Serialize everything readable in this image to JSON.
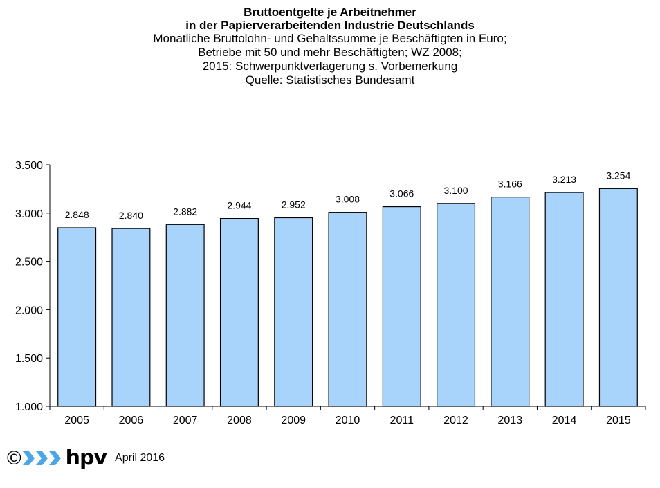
{
  "chart_data": {
    "type": "bar",
    "title": "Bruttoentgelte je Arbeitnehmer",
    "title_line2": "in der Papierverarbeitenden Industrie Deutschlands",
    "subtitle": [
      "Monatliche Bruttolohn- und Gehaltssumme je Beschäftigten in Euro;",
      "Betriebe mit 50 und mehr Beschäftigten; WZ 2008;",
      "2015: Schwerpunktverlagerung s. Vorbemerkung",
      "Quelle: Statistisches Bundesamt"
    ],
    "categories": [
      "2005",
      "2006",
      "2007",
      "2008",
      "2009",
      "2010",
      "2011",
      "2012",
      "2013",
      "2014",
      "2015"
    ],
    "values": [
      2848,
      2840,
      2882,
      2944,
      2952,
      3008,
      3066,
      3100,
      3166,
      3213,
      3254
    ],
    "value_labels": [
      "2.848",
      "2.840",
      "2.882",
      "2.944",
      "2.952",
      "3.008",
      "3.066",
      "3.100",
      "3.166",
      "3.213",
      "3.254"
    ],
    "ylim": [
      1000,
      3500
    ],
    "yticks": [
      1000,
      1500,
      2000,
      2500,
      3000,
      3500
    ],
    "ytick_labels": [
      "1.000",
      "1.500",
      "2.000",
      "2.500",
      "3.000",
      "3.500"
    ],
    "xlabel": "",
    "ylabel": "",
    "grid": false,
    "bar_color": "#a8d4fb",
    "bar_edge_color": "#000000"
  },
  "footer": {
    "copyright": "©",
    "logo_text": "hpv",
    "logo_icon": "triple-chevron-arrows",
    "logo_color": "#4ba6e8",
    "date": "April 2016"
  }
}
